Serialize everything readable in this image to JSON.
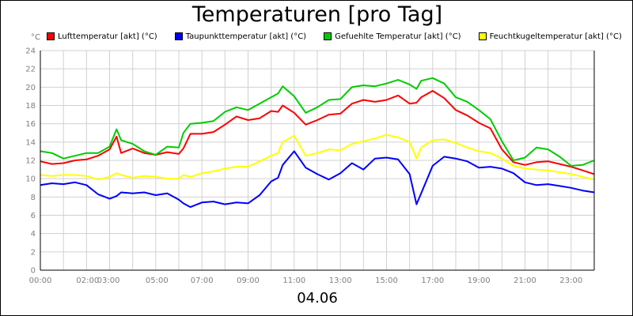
{
  "chart_data": {
    "type": "line",
    "title": "Temperaturen [pro Tag]",
    "xlabel": "04.06",
    "ylabel": "°C",
    "ylim": [
      0,
      24
    ],
    "yticks": [
      0,
      2,
      4,
      6,
      8,
      10,
      12,
      14,
      16,
      18,
      20,
      22,
      24
    ],
    "xlim": [
      0,
      24
    ],
    "xticks": [
      "00:00",
      "02:00",
      "03:00",
      "05:00",
      "07:00",
      "09:00",
      "11:00",
      "13:00",
      "15:00",
      "17:00",
      "19:00",
      "21:00",
      "23:00"
    ],
    "xtick_hours": [
      0,
      2.05,
      2.95,
      5.05,
      7,
      9,
      11,
      13,
      15,
      17,
      19,
      21,
      23
    ],
    "grid": true,
    "legend_position": "top",
    "x": [
      0,
      0.5,
      1,
      1.5,
      2,
      2.5,
      3,
      3.3,
      3.5,
      4,
      4.5,
      5,
      5.5,
      6,
      6.2,
      6.5,
      7,
      7.5,
      8,
      8.5,
      9,
      9.5,
      10,
      10.3,
      10.5,
      11,
      11.5,
      12,
      12.5,
      13,
      13.5,
      14,
      14.5,
      15,
      15.5,
      16,
      16.3,
      16.5,
      17,
      17.5,
      18,
      18.5,
      19,
      19.5,
      20,
      20.5,
      21,
      21.5,
      22,
      22.5,
      23,
      23.5,
      24
    ],
    "series": [
      {
        "name": "Lufttemperatur [akt] (°C)",
        "color": "#ff0000",
        "values": [
          11.9,
          11.6,
          11.7,
          12.0,
          12.1,
          12.5,
          13.2,
          14.6,
          12.8,
          13.3,
          12.8,
          12.6,
          12.9,
          12.7,
          13.3,
          14.9,
          14.9,
          15.1,
          15.9,
          16.8,
          16.4,
          16.6,
          17.4,
          17.3,
          18.0,
          17.2,
          15.9,
          16.4,
          17.0,
          17.1,
          18.2,
          18.6,
          18.4,
          18.6,
          19.1,
          18.2,
          18.3,
          18.9,
          19.6,
          18.8,
          17.5,
          16.9,
          16.1,
          15.5,
          13.2,
          11.8,
          11.5,
          11.8,
          11.9,
          11.6,
          11.3,
          10.9,
          10.5
        ]
      },
      {
        "name": "Taupunkttemperatur [akt] (°C)",
        "color": "#0000ff",
        "values": [
          9.3,
          9.5,
          9.4,
          9.6,
          9.3,
          8.3,
          7.8,
          8.1,
          8.5,
          8.4,
          8.5,
          8.2,
          8.4,
          7.7,
          7.3,
          6.9,
          7.4,
          7.5,
          7.2,
          7.4,
          7.3,
          8.2,
          9.7,
          10.1,
          11.5,
          13.0,
          11.2,
          10.5,
          9.9,
          10.6,
          11.7,
          11.0,
          12.2,
          12.3,
          12.1,
          10.5,
          7.2,
          8.4,
          11.4,
          12.4,
          12.2,
          11.9,
          11.2,
          11.3,
          11.1,
          10.6,
          9.6,
          9.3,
          9.4,
          9.2,
          9.0,
          8.7,
          8.5
        ]
      },
      {
        "name": "Gefuehlte Temperatur [akt] (°C)",
        "color": "#00cc00",
        "values": [
          13.0,
          12.8,
          12.2,
          12.5,
          12.8,
          12.8,
          13.5,
          15.4,
          14.2,
          13.8,
          13.0,
          12.6,
          13.5,
          13.4,
          15.0,
          16.0,
          16.1,
          16.3,
          17.3,
          17.8,
          17.5,
          18.2,
          18.9,
          19.3,
          20.1,
          19.0,
          17.2,
          17.8,
          18.6,
          18.7,
          20.0,
          20.2,
          20.1,
          20.4,
          20.8,
          20.3,
          19.8,
          20.7,
          21.0,
          20.4,
          18.9,
          18.4,
          17.5,
          16.5,
          14.1,
          12.0,
          12.3,
          13.4,
          13.2,
          12.4,
          11.4,
          11.5,
          12.0
        ]
      },
      {
        "name": "Feuchtkugeltemperatur [akt] (°C)",
        "color": "#ffff00",
        "values": [
          10.4,
          10.3,
          10.4,
          10.4,
          10.3,
          9.9,
          10.2,
          10.6,
          10.4,
          10.1,
          10.3,
          10.2,
          10.0,
          10.0,
          10.4,
          10.2,
          10.6,
          10.8,
          11.1,
          11.3,
          11.3,
          11.9,
          12.5,
          12.8,
          14.0,
          14.7,
          12.5,
          12.8,
          13.2,
          13.1,
          13.8,
          14.1,
          14.4,
          14.8,
          14.5,
          14.0,
          12.2,
          13.4,
          14.2,
          14.3,
          13.9,
          13.4,
          13.0,
          12.8,
          12.2,
          11.4,
          11.1,
          11.0,
          10.9,
          10.7,
          10.5,
          10.2,
          9.9
        ]
      }
    ]
  }
}
